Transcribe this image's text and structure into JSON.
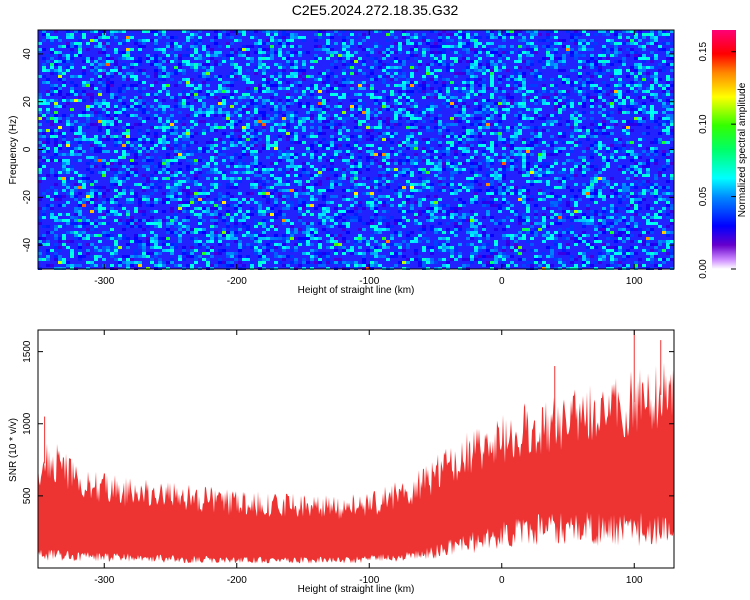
{
  "title": "C2E5.2024.272.18.35.G32",
  "chart_data": [
    {
      "type": "heatmap",
      "xlabel": "Height of straight line (km)",
      "ylabel": "Frequency (Hz)",
      "xlim": [
        -350,
        130
      ],
      "ylim": [
        -50,
        50
      ],
      "xticks": [
        -300,
        -200,
        -100,
        0,
        100
      ],
      "yticks": [
        -40,
        -20,
        0,
        20,
        40
      ],
      "colorbar": {
        "label": "Normalized spectral amplitude",
        "range": [
          0.0,
          0.165
        ],
        "ticks": [
          0.0,
          0.05,
          0.1,
          0.15
        ],
        "tick_labels": [
          "0.00",
          "0.05",
          "0.10",
          "0.15"
        ],
        "colormap": "rainbow (violet → blue → cyan → green → yellow → red → magenta)"
      },
      "background_level": 0.02,
      "typical_level_range": [
        0.02,
        0.07
      ],
      "peak_level": 0.14
    },
    {
      "type": "area",
      "xlabel": "Height of straight line (km)",
      "ylabel": "SNR (10 * v/v)",
      "xlim": [
        -350,
        130
      ],
      "ylim": [
        0,
        1650
      ],
      "xticks": [
        -300,
        -200,
        -100,
        0,
        100
      ],
      "yticks": [
        500,
        1000,
        1500
      ],
      "color": "#ee3333",
      "envelope": {
        "x": [
          -350,
          -340,
          -320,
          -300,
          -280,
          -250,
          -200,
          -150,
          -120,
          -100,
          -80,
          -60,
          -40,
          -20,
          0,
          20,
          40,
          60,
          80,
          100,
          120,
          130
        ],
        "upper": [
          700,
          750,
          600,
          550,
          520,
          500,
          450,
          430,
          420,
          440,
          500,
          580,
          720,
          820,
          900,
          960,
          1000,
          1050,
          1100,
          1150,
          1200,
          1200
        ],
        "lower": [
          100,
          100,
          90,
          80,
          80,
          70,
          60,
          60,
          60,
          70,
          80,
          100,
          150,
          200,
          250,
          280,
          300,
          300,
          300,
          300,
          300,
          300
        ]
      },
      "peaks": [
        {
          "x": -345,
          "y": 1050
        },
        {
          "x": 40,
          "y": 1400
        },
        {
          "x": 100,
          "y": 1650
        },
        {
          "x": 120,
          "y": 1580
        }
      ]
    }
  ]
}
